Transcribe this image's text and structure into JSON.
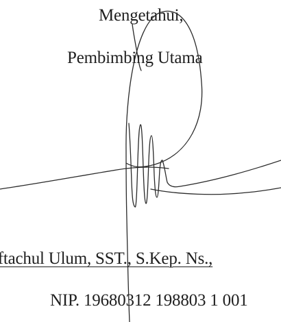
{
  "document": {
    "greeting": "Mengetahui,",
    "role": "Pembimbing Utama",
    "name": "iftachul Ulum, SST., S.Kep. Ns.,",
    "nip": "NIP. 19680312 198803 1 001"
  },
  "signature": {
    "ink_color": "#2a2a2a"
  }
}
